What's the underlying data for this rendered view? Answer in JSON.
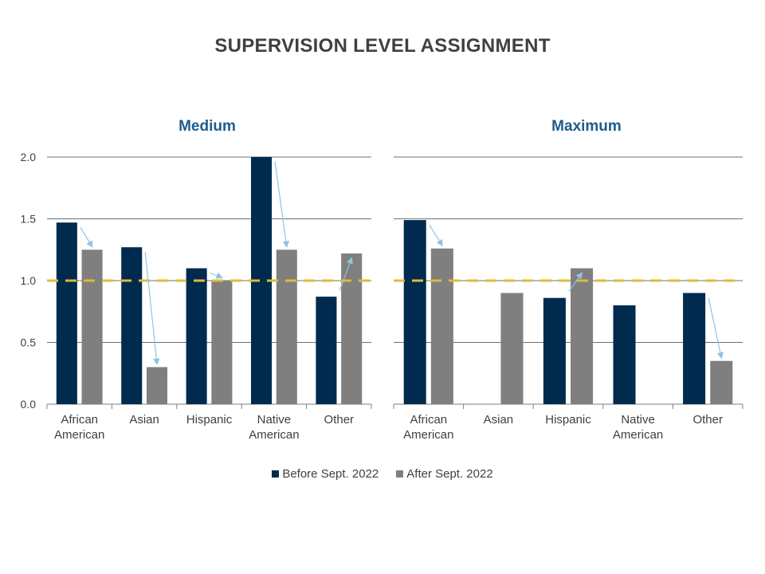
{
  "title": "SUPERVISION LEVEL ASSIGNMENT",
  "colors": {
    "before": "#002b4e",
    "after": "#7f7f7f",
    "panel_title": "#1f5c8b",
    "reference_line": "#e0b93a",
    "arrow": "#8fc3e0",
    "grid": "#404040",
    "text": "#404040"
  },
  "legend": [
    {
      "label": "Before Sept. 2022",
      "color": "#002b4e"
    },
    {
      "label": "After Sept. 2022",
      "color": "#7f7f7f"
    }
  ],
  "chart_data": [
    {
      "type": "bar",
      "title": "Medium",
      "categories": [
        "African American",
        "Asian",
        "Hispanic",
        "Native American",
        "Other"
      ],
      "series": [
        {
          "name": "Before Sept. 2022",
          "values": [
            1.47,
            1.27,
            1.1,
            2.0,
            0.87
          ]
        },
        {
          "name": "After Sept. 2022",
          "values": [
            1.25,
            0.3,
            1.0,
            1.25,
            1.22
          ]
        }
      ],
      "ylim": [
        0,
        2.0
      ],
      "yticks": [
        "0.0",
        "0.5",
        "1.0",
        "1.5",
        "2.0"
      ],
      "reference_line": 1.0,
      "grid": true
    },
    {
      "type": "bar",
      "title": "Maximum",
      "categories": [
        "African American",
        "Asian",
        "Hispanic",
        "Native American",
        "Other"
      ],
      "series": [
        {
          "name": "Before Sept. 2022",
          "values": [
            1.49,
            null,
            0.86,
            0.8,
            0.9
          ]
        },
        {
          "name": "After Sept. 2022",
          "values": [
            1.26,
            0.9,
            1.1,
            null,
            0.35
          ]
        }
      ],
      "ylim": [
        0,
        2.0
      ],
      "reference_line": 1.0,
      "grid": true
    }
  ]
}
